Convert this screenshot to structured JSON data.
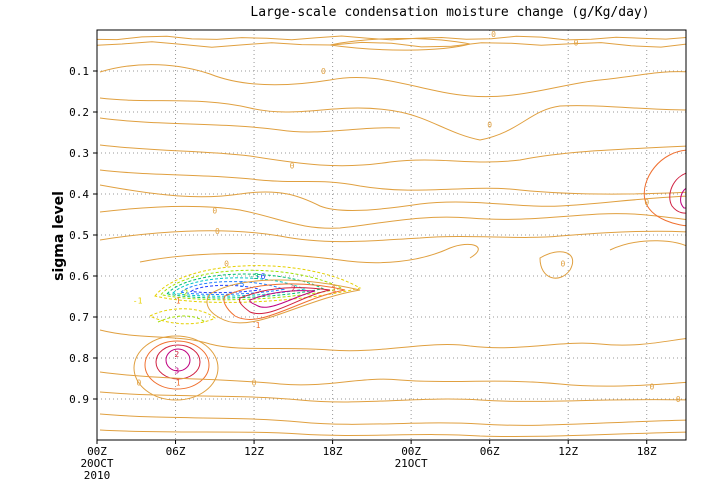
{
  "chart_data": {
    "type": "contour",
    "title": "Large-scale condensation moisture change (g/Kg/day)",
    "ylabel": "sigma level",
    "xlabel": "",
    "ylim": [
      1.0,
      0.0
    ],
    "y_ticks": [
      0.1,
      0.2,
      0.3,
      0.4,
      0.5,
      0.6,
      0.7,
      0.8,
      0.9
    ],
    "x_hours_range": [
      0,
      45
    ],
    "x_ticks": [
      {
        "hour": 0,
        "label": "00Z",
        "sublabel": "20OCT",
        "sublabel2": "2010"
      },
      {
        "hour": 6,
        "label": "06Z"
      },
      {
        "hour": 12,
        "label": "12Z"
      },
      {
        "hour": 18,
        "label": "18Z"
      },
      {
        "hour": 24,
        "label": "00Z",
        "sublabel": "21OCT"
      },
      {
        "hour": 30,
        "label": "06Z"
      },
      {
        "hour": 36,
        "label": "12Z"
      },
      {
        "hour": 42,
        "label": "18Z"
      }
    ],
    "grid": true,
    "contour_levels": [
      -6,
      -5,
      -4,
      -3,
      -2,
      -1,
      0,
      1,
      2,
      3
    ],
    "level_colors": {
      "-6": "#1e3cff",
      "-5": "#2080ff",
      "-4": "#00c8c8",
      "-3": "#00c070",
      "-2": "#a0e000",
      "-1": "#e6d000",
      "0": "#e0a040",
      "1": "#f07030",
      "2": "#d02040",
      "3": "#c00080"
    },
    "features": [
      {
        "level": 0,
        "x": [
          0,
          45
        ],
        "y": [
          0.02,
          0.03
        ]
      },
      {
        "level": 0,
        "x": [
          10,
          20
        ],
        "y": [
          0.12,
          0.12
        ]
      },
      {
        "level": 0,
        "x": [
          0,
          45
        ],
        "y": [
          0.16,
          0.22
        ]
      },
      {
        "level": 0,
        "x": [
          0,
          45
        ],
        "y": [
          0.26,
          0.33
        ]
      },
      {
        "level": 0,
        "x": [
          0,
          45
        ],
        "y": [
          0.38,
          0.48
        ]
      },
      {
        "level": 0,
        "x": [
          0,
          45
        ],
        "y": [
          0.55,
          0.6
        ]
      },
      {
        "level": -6,
        "x": [
          8,
          13
        ],
        "y": [
          0.61,
          0.63
        ]
      },
      {
        "level": 3,
        "x": [
          12,
          16
        ],
        "y": [
          0.61,
          0.66
        ]
      },
      {
        "level": 3,
        "x": [
          5,
          7
        ],
        "y": [
          0.78,
          0.84
        ]
      },
      {
        "level": 3,
        "x": [
          44,
          45
        ],
        "y": [
          0.39,
          0.45
        ]
      },
      {
        "level": 0,
        "x": [
          0,
          45
        ],
        "y": [
          0.85,
          0.93
        ]
      }
    ],
    "contour_labels": [
      {
        "text": "0",
        "level": 0,
        "hour": 36.6,
        "sigma": 0.03
      },
      {
        "text": "0",
        "level": 0,
        "hour": 30.3,
        "sigma": 0.01
      },
      {
        "text": "0",
        "level": 0,
        "hour": 17.3,
        "sigma": 0.1
      },
      {
        "text": "0",
        "level": 0,
        "hour": 30.0,
        "sigma": 0.23
      },
      {
        "text": "0",
        "level": 0,
        "hour": 14.9,
        "sigma": 0.33
      },
      {
        "text": "0",
        "level": 0,
        "hour": 9.0,
        "sigma": 0.44
      },
      {
        "text": "0",
        "level": 0,
        "hour": 9.2,
        "sigma": 0.49
      },
      {
        "text": "0",
        "level": 0,
        "hour": 35.6,
        "sigma": 0.57
      },
      {
        "text": "0",
        "level": 0,
        "hour": 42.0,
        "sigma": 0.42
      },
      {
        "text": "0",
        "level": 0,
        "hour": 9.9,
        "sigma": 0.57
      },
      {
        "text": "0",
        "level": 0,
        "hour": 3.2,
        "sigma": 0.86
      },
      {
        "text": "0",
        "level": 0,
        "hour": 12.0,
        "sigma": 0.86
      },
      {
        "text": "0",
        "level": 0,
        "hour": 42.4,
        "sigma": 0.87
      },
      {
        "text": "0",
        "level": 0,
        "hour": 44.4,
        "sigma": 0.9
      },
      {
        "text": "-1",
        "level": -1,
        "hour": 3.1,
        "sigma": 0.66
      },
      {
        "text": "-2",
        "level": -2,
        "hour": 6.6,
        "sigma": 0.64
      },
      {
        "text": "-3",
        "level": -3,
        "hour": 12.0,
        "sigma": 0.6
      },
      {
        "text": "-5",
        "level": -5,
        "hour": 10.9,
        "sigma": 0.62
      },
      {
        "text": "-6",
        "level": -6,
        "hour": 12.5,
        "sigma": 0.6
      },
      {
        "text": "1",
        "level": 1,
        "hour": 6.2,
        "sigma": 0.66
      },
      {
        "text": "1",
        "level": 1,
        "hour": 18.1,
        "sigma": 0.63
      },
      {
        "text": "1",
        "level": 1,
        "hour": 12.3,
        "sigma": 0.72
      },
      {
        "text": "1",
        "level": 1,
        "hour": 6.2,
        "sigma": 0.86
      },
      {
        "text": "2",
        "level": 2,
        "hour": 15.0,
        "sigma": 0.63
      },
      {
        "text": "2",
        "level": 2,
        "hour": 6.1,
        "sigma": 0.79
      },
      {
        "text": "3",
        "level": 3,
        "hour": 6.1,
        "sigma": 0.83
      }
    ]
  }
}
